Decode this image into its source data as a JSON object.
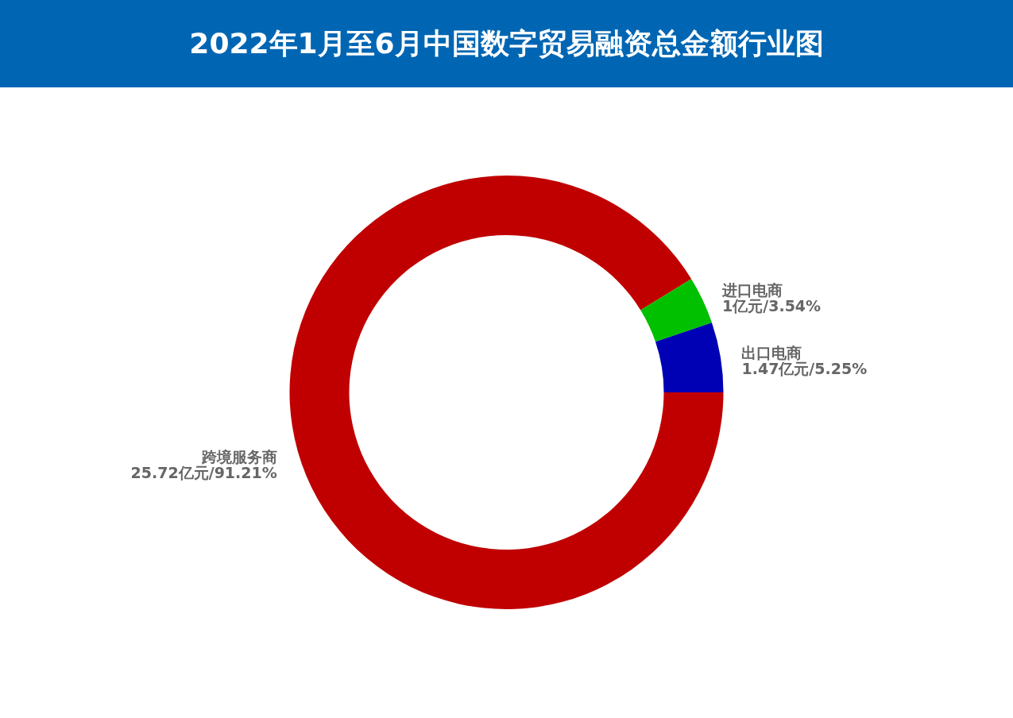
{
  "chart_data": {
    "type": "donut",
    "title": "2022年1月至6月中国数字贸易融资总金额行业图",
    "categories": [
      "跨境服务商",
      "进口电商",
      "出口电商"
    ],
    "values": [
      25.72,
      1,
      1.47
    ],
    "colors": [
      "#c00000",
      "#00c000",
      "#0000b4"
    ],
    "value_labels": [
      "25.72亿元/91.21%",
      "1亿元/3.54%",
      "1.47亿元/5.25%"
    ]
  }
}
